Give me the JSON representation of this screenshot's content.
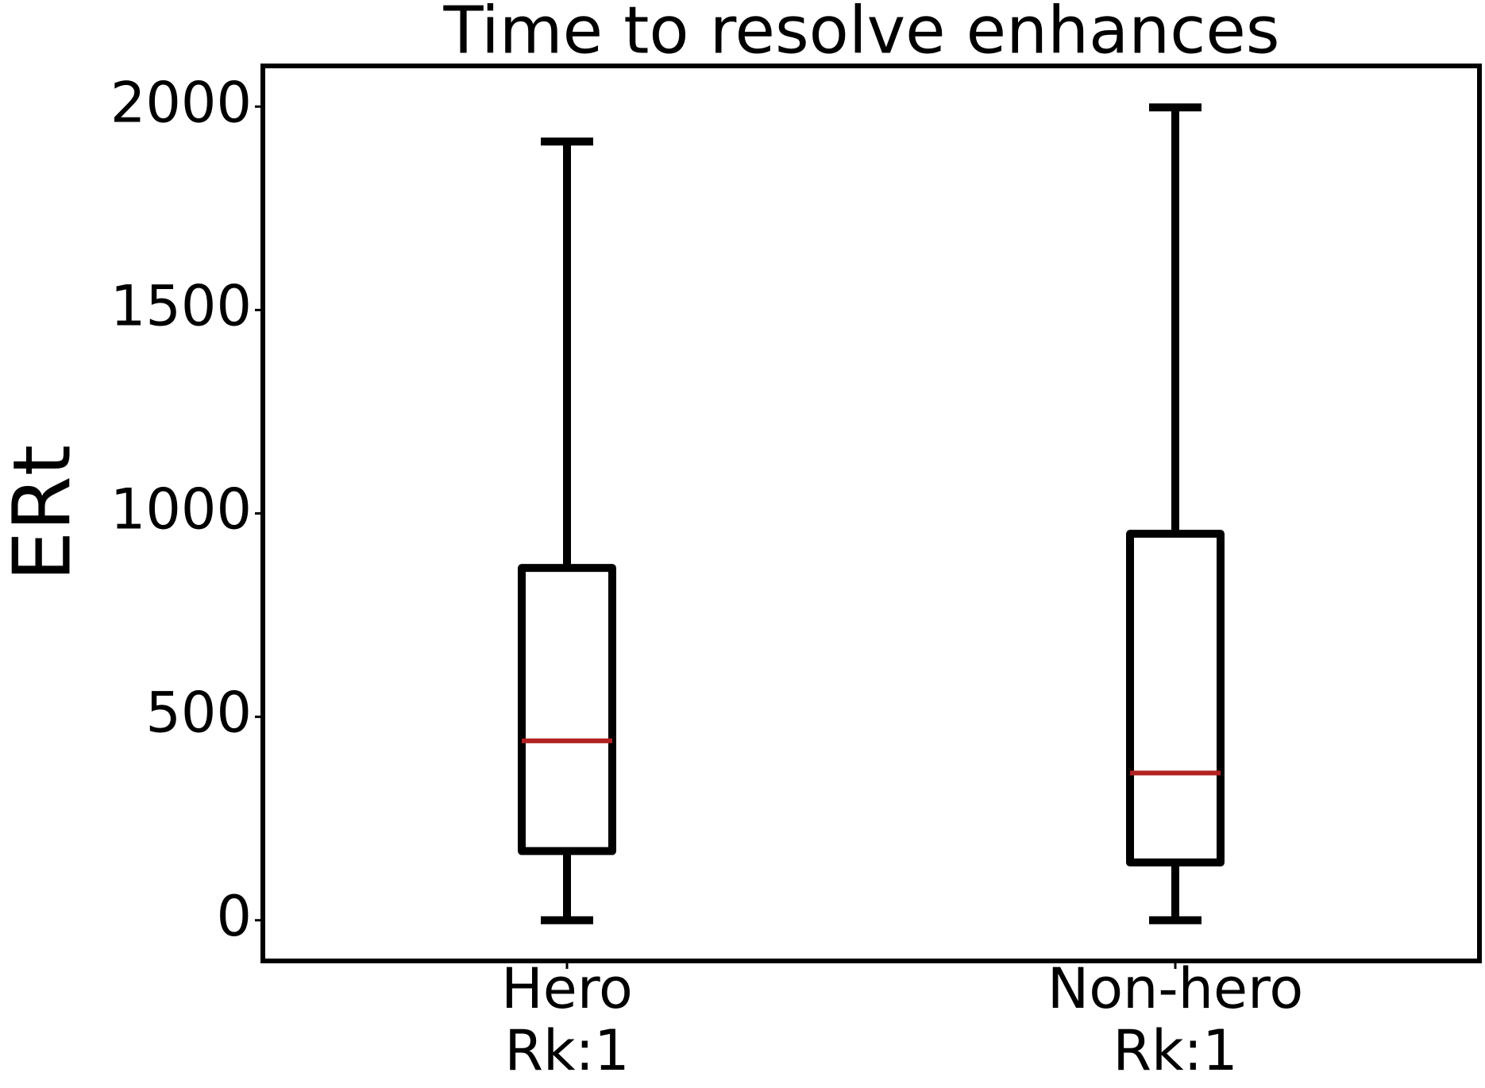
{
  "chart_data": {
    "type": "box",
    "title": "Time to resolve enhances",
    "ylabel": "ERt",
    "categories": [
      [
        "Hero",
        "Rk:1"
      ],
      [
        "Non-hero",
        "Rk:1"
      ]
    ],
    "boxes": [
      {
        "whislo": 0,
        "q1": 170,
        "med": 441,
        "q3": 866,
        "whishi": 1914
      },
      {
        "whislo": 0,
        "q1": 142,
        "med": 362,
        "q3": 950,
        "whishi": 1998
      }
    ],
    "box_color": "#000000",
    "median_color": "#b22222",
    "ylim": [
      -100,
      2100
    ],
    "yticks": [
      0,
      500,
      1000,
      1500,
      2000
    ]
  }
}
